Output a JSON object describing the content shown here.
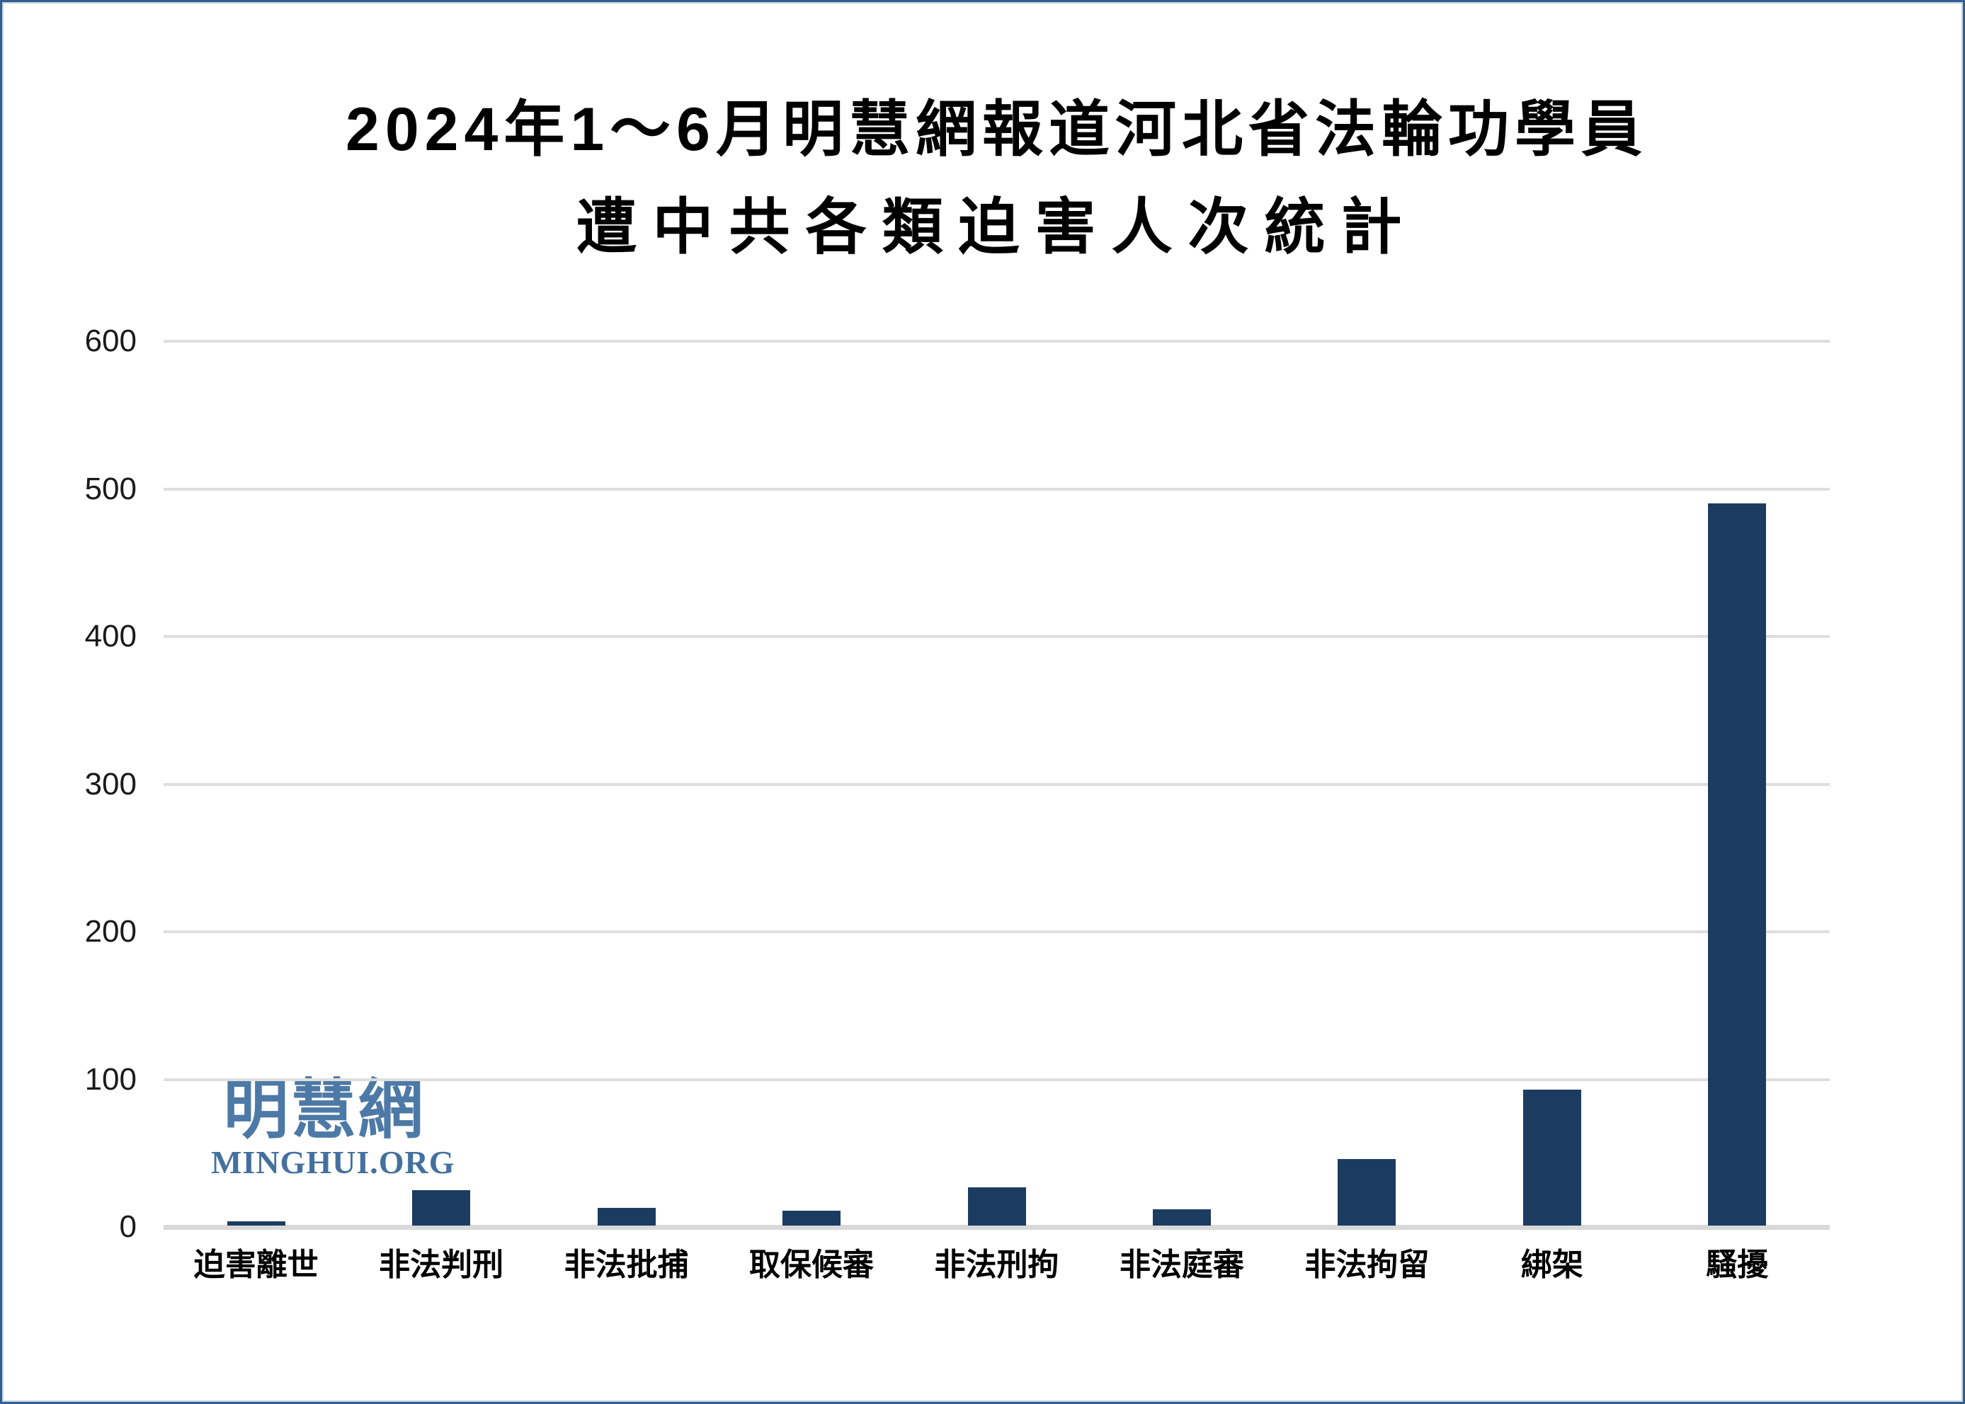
{
  "page": {
    "background": "#ffffff",
    "border_color": "#30608f"
  },
  "title": {
    "line1": "2024年1～6月明慧網報道河北省法輪功學員",
    "line2": "遭中共各類迫害人次統計",
    "color": "#000000"
  },
  "watermark": {
    "cjk_text": "明慧網",
    "latin_text": "MINGHUI.ORG",
    "cjk_color": "#4d79a6",
    "latin_color": "#44709e"
  },
  "chart_data": {
    "type": "bar",
    "title": "2024年1～6月明慧網報道河北省法輪功學員遭中共各類迫害人次統計",
    "categories": [
      "迫害離世",
      "非法判刑",
      "非法批捕",
      "取保候審",
      "非法刑拘",
      "非法庭審",
      "非法拘留",
      "綁架",
      "騷擾"
    ],
    "values": [
      4,
      25,
      13,
      11,
      27,
      12,
      46,
      93,
      490
    ],
    "xlabel": "",
    "ylabel": "",
    "ylim": [
      0,
      600
    ],
    "yticks": [
      0,
      100,
      200,
      300,
      400,
      500,
      600
    ],
    "grid": true,
    "legend_position": "none",
    "bar_color": "#1b3c60",
    "gridline_color": "#dedede",
    "baseline_color": "#d9d9d9",
    "tick_label_color": "#1a1a1a"
  }
}
